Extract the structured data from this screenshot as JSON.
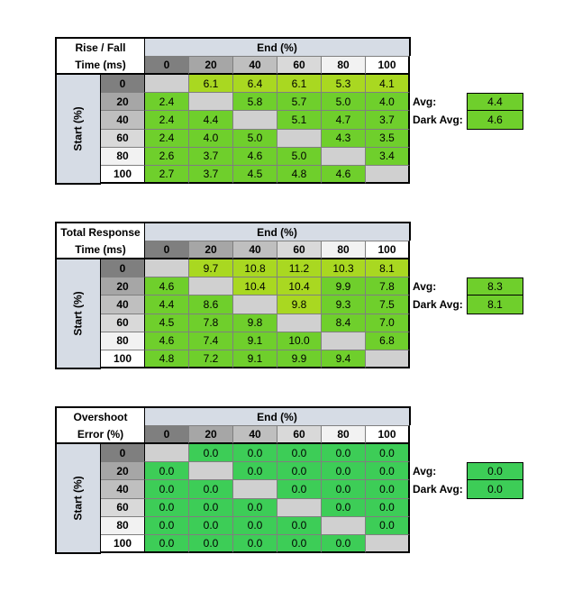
{
  "colors": {
    "yellow_green": "#a9d821",
    "green": "#6fcf2c",
    "bright_green": "#3dcd57",
    "gray": "#d0d0d0",
    "header_blue": "#d6dce5"
  },
  "columns": [
    "0",
    "20",
    "40",
    "60",
    "80",
    "100"
  ],
  "rows": [
    "0",
    "20",
    "40",
    "60",
    "80",
    "100"
  ],
  "column_header_colors": [
    "#7f7f7f",
    "#a6a6a6",
    "#bfbfbf",
    "#d9d9d9",
    "#f2f2f2",
    "#ffffff"
  ],
  "end_label": "End (%)",
  "start_label": "Start (%)",
  "tables": [
    {
      "title_line1": "Rise / Fall",
      "title_line2": "Time (ms)",
      "avg_label": "Avg:",
      "avg_value": "4.4",
      "dark_avg_label": "Dark Avg:",
      "dark_avg_value": "4.6",
      "values": [
        [
          "",
          "6.1",
          "6.4",
          "6.1",
          "5.3",
          "4.1"
        ],
        [
          "2.4",
          "",
          "5.8",
          "5.7",
          "5.0",
          "4.0"
        ],
        [
          "2.4",
          "4.4",
          "",
          "5.1",
          "4.7",
          "3.7"
        ],
        [
          "2.4",
          "4.0",
          "5.0",
          "",
          "4.3",
          "3.5"
        ],
        [
          "2.6",
          "3.7",
          "4.6",
          "5.0",
          "",
          "3.4"
        ],
        [
          "2.7",
          "3.7",
          "4.5",
          "4.8",
          "4.6",
          ""
        ]
      ]
    },
    {
      "title_line1": "Total Response",
      "title_line2": "Time (ms)",
      "avg_label": "Avg:",
      "avg_value": "8.3",
      "dark_avg_label": "Dark Avg:",
      "dark_avg_value": "8.1",
      "values": [
        [
          "",
          "9.7",
          "10.8",
          "11.2",
          "10.3",
          "8.1"
        ],
        [
          "4.6",
          "",
          "10.4",
          "10.4",
          "9.9",
          "7.8"
        ],
        [
          "4.4",
          "8.6",
          "",
          "9.8",
          "9.3",
          "7.5"
        ],
        [
          "4.5",
          "7.8",
          "9.8",
          "",
          "8.4",
          "7.0"
        ],
        [
          "4.6",
          "7.4",
          "9.1",
          "10.0",
          "",
          "6.8"
        ],
        [
          "4.8",
          "7.2",
          "9.1",
          "9.9",
          "9.4",
          ""
        ]
      ]
    },
    {
      "title_line1": "Overshoot",
      "title_line2": "Error (%)",
      "avg_label": "Avg:",
      "avg_value": "0.0",
      "dark_avg_label": "Dark Avg:",
      "dark_avg_value": "0.0",
      "values": [
        [
          "",
          "0.0",
          "0.0",
          "0.0",
          "0.0",
          "0.0"
        ],
        [
          "0.0",
          "",
          "0.0",
          "0.0",
          "0.0",
          "0.0"
        ],
        [
          "0.0",
          "0.0",
          "",
          "0.0",
          "0.0",
          "0.0"
        ],
        [
          "0.0",
          "0.0",
          "0.0",
          "",
          "0.0",
          "0.0"
        ],
        [
          "0.0",
          "0.0",
          "0.0",
          "0.0",
          "",
          "0.0"
        ],
        [
          "0.0",
          "0.0",
          "0.0",
          "0.0",
          "0.0",
          ""
        ]
      ]
    }
  ]
}
